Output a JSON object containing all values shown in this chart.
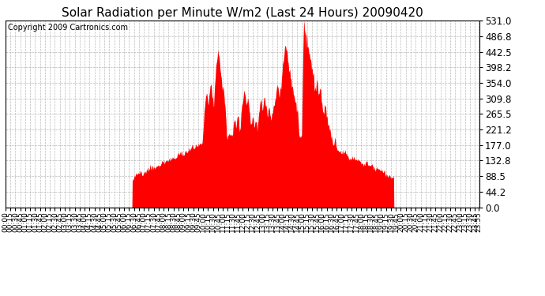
{
  "title": "Solar Radiation per Minute W/m2 (Last 24 Hours) 20090420",
  "copyright": "Copyright 2009 Cartronics.com",
  "yticks": [
    0.0,
    44.2,
    88.5,
    132.8,
    177.0,
    221.2,
    265.5,
    309.8,
    354.0,
    398.2,
    442.5,
    486.8,
    531.0
  ],
  "ymax": 531.0,
  "fill_color": "red",
  "line_color": "red",
  "dashed_line_color": "#dd0000",
  "background_color": "white",
  "grid_color": "#aaaaaa",
  "title_fontsize": 11,
  "copyright_fontsize": 7,
  "tick_label_fontsize": 6.5,
  "ytick_label_fontsize": 8.5
}
